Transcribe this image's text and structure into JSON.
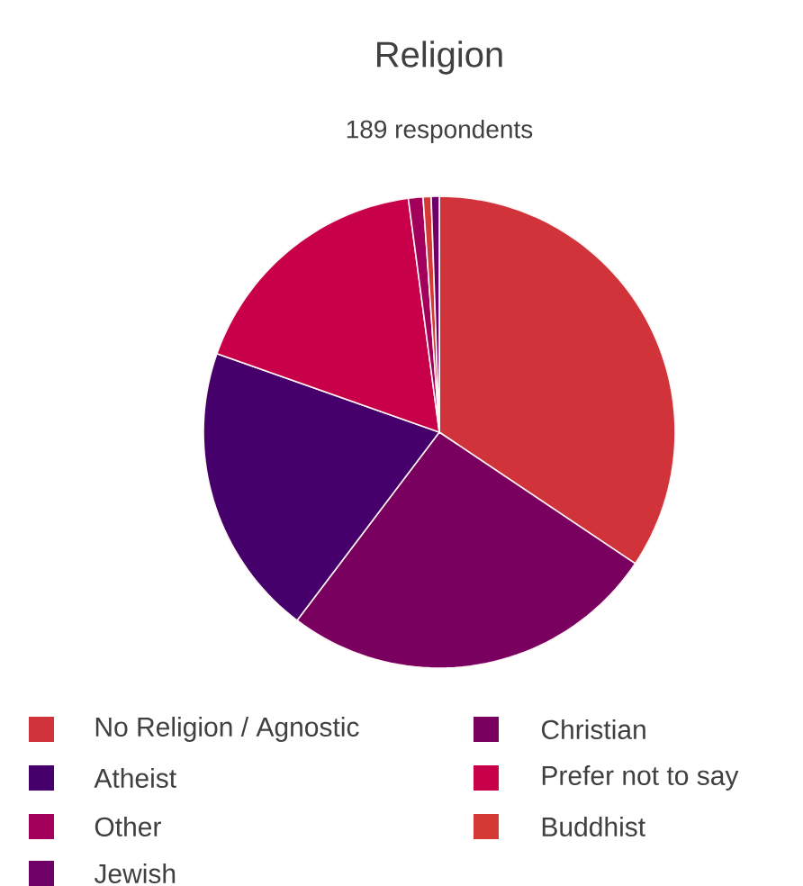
{
  "chart_data": {
    "type": "pie",
    "title": "Religion",
    "subtitle": "189 respondents",
    "categories": [
      "No Religion / Agnostic",
      "Christian",
      "Atheist",
      "Prefer not to say",
      "Other",
      "Buddhist",
      "Jewish"
    ],
    "values": [
      34.4,
      25.9,
      20.1,
      17.5,
      1.0,
      0.55,
      0.55
    ],
    "colors": [
      "#d0343a",
      "#7a0060",
      "#46006b",
      "#c8004a",
      "#a3005c",
      "#d43a33",
      "#6e0068"
    ],
    "legend": "bottom"
  }
}
